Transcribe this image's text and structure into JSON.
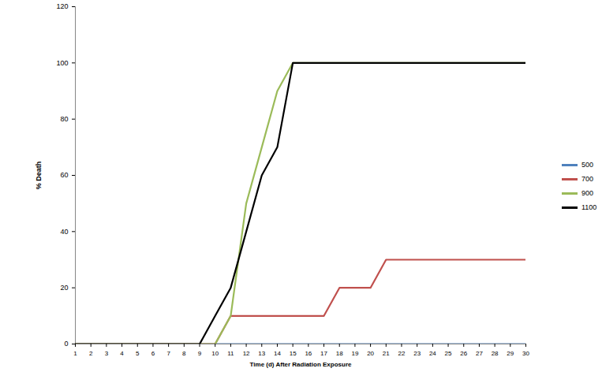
{
  "chart_data": {
    "type": "line",
    "xlabel": "Time (d) After Radiation Exposure",
    "ylabel": "% Death",
    "x": [
      1,
      2,
      3,
      4,
      5,
      6,
      7,
      8,
      9,
      10,
      11,
      12,
      13,
      14,
      15,
      16,
      17,
      18,
      19,
      20,
      21,
      22,
      23,
      24,
      25,
      26,
      27,
      28,
      29,
      30
    ],
    "series": [
      {
        "name": "500",
        "color": "#4f81bd",
        "values": [
          0,
          0,
          0,
          0,
          0,
          0,
          0,
          0,
          0,
          0,
          0,
          0,
          0,
          0,
          0,
          0,
          0,
          0,
          0,
          0,
          0,
          0,
          0,
          0,
          0,
          0,
          0,
          0,
          0,
          0
        ]
      },
      {
        "name": "700",
        "color": "#c0504d",
        "values": [
          0,
          0,
          0,
          0,
          0,
          0,
          0,
          0,
          0,
          0,
          10,
          10,
          10,
          10,
          10,
          10,
          10,
          20,
          20,
          20,
          30,
          30,
          30,
          30,
          30,
          30,
          30,
          30,
          30,
          30
        ]
      },
      {
        "name": "900",
        "color": "#9bbb59",
        "values": [
          0,
          0,
          0,
          0,
          0,
          0,
          0,
          0,
          0,
          0,
          10,
          50,
          70,
          90,
          100,
          100,
          100,
          100,
          100,
          100,
          100,
          100,
          100,
          100,
          100,
          100,
          100,
          100,
          100,
          100
        ]
      },
      {
        "name": "1100",
        "color": "#000000",
        "values": [
          0,
          0,
          0,
          0,
          0,
          0,
          0,
          0,
          0,
          10,
          20,
          40,
          60,
          70,
          100,
          100,
          100,
          100,
          100,
          100,
          100,
          100,
          100,
          100,
          100,
          100,
          100,
          100,
          100,
          100
        ]
      }
    ],
    "xlim": [
      1,
      30
    ],
    "xticks": [
      1,
      2,
      3,
      4,
      5,
      6,
      7,
      8,
      9,
      10,
      11,
      12,
      13,
      14,
      15,
      16,
      17,
      18,
      19,
      20,
      21,
      22,
      23,
      24,
      25,
      26,
      27,
      28,
      29,
      30
    ],
    "ylim": [
      0,
      120
    ],
    "yticks": [
      0,
      20,
      40,
      60,
      80,
      100,
      120
    ],
    "grid": false,
    "legend": "right"
  }
}
